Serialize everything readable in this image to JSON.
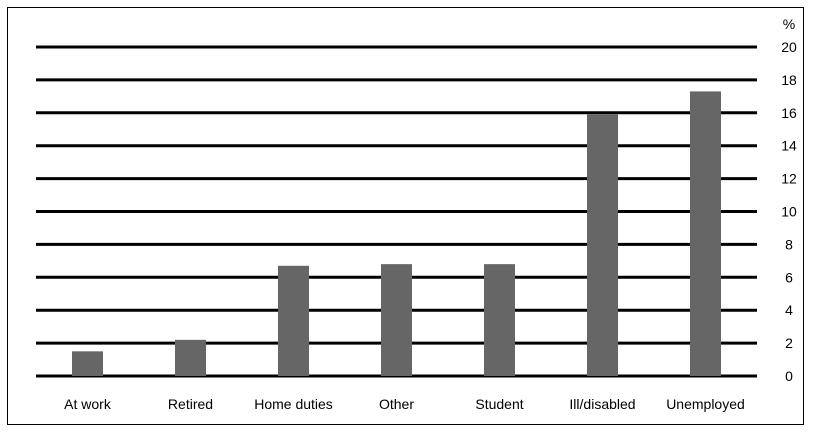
{
  "chart_data": {
    "type": "bar",
    "categories": [
      "At work",
      "Retired",
      "Home duties",
      "Other",
      "Student",
      "Ill/disabled",
      "Unemployed"
    ],
    "values": [
      1.5,
      2.2,
      6.7,
      6.8,
      6.8,
      15.9,
      17.3
    ],
    "ylabel": "%",
    "ylim": [
      0,
      20
    ],
    "yticks": [
      0,
      2,
      4,
      6,
      8,
      10,
      12,
      14,
      16,
      18,
      20
    ],
    "grid": true,
    "legend": "none",
    "bar_color": "#666666",
    "grid_color": "#000000"
  }
}
